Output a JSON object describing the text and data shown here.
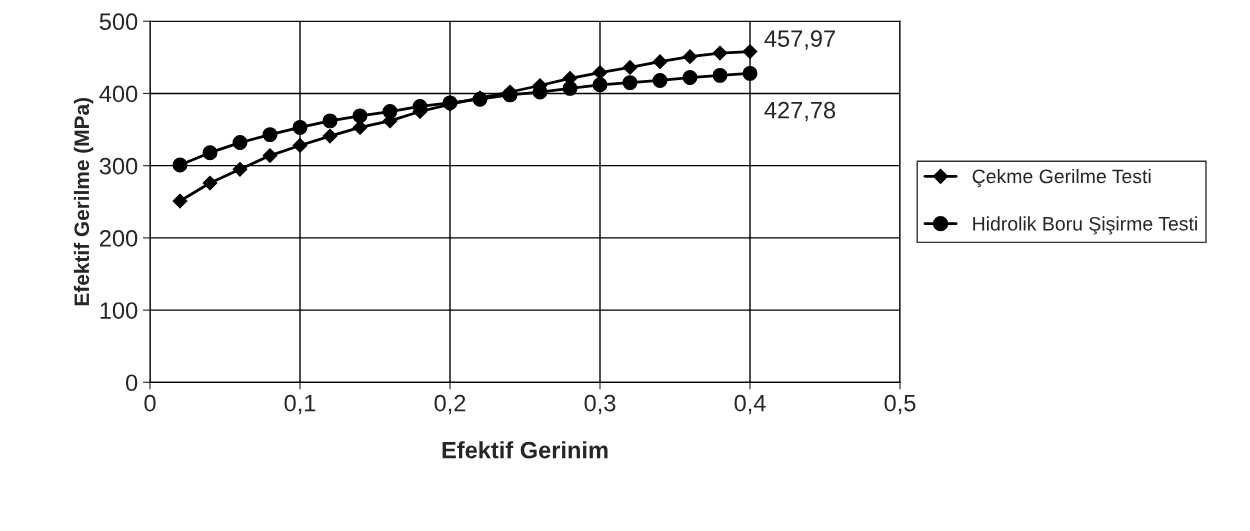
{
  "chart_data": {
    "type": "line",
    "xlabel": "Efektif Gerinim",
    "ylabel": "Efektif Gerilme (MPa)",
    "x": [
      0.02,
      0.04,
      0.06,
      0.08,
      0.1,
      0.12,
      0.14,
      0.16,
      0.18,
      0.2,
      0.22,
      0.24,
      0.26,
      0.28,
      0.3,
      0.32,
      0.34,
      0.36,
      0.38,
      0.4
    ],
    "series": [
      {
        "name": "Çekme Gerilme Testi",
        "color": "#000000",
        "marker": "diamond",
        "values": [
          251,
          276,
          295,
          314,
          328,
          341,
          353,
          362,
          375,
          385,
          394,
          402,
          411,
          421,
          429,
          436,
          444,
          451,
          456,
          457.97
        ]
      },
      {
        "name": "Hidrolik Boru Şişirme Testi",
        "color": "#000000",
        "marker": "circle",
        "values": [
          301,
          318,
          332,
          343,
          353,
          362,
          369,
          375,
          382,
          387,
          392,
          398,
          402,
          407,
          412,
          415,
          418,
          422,
          425,
          427.78
        ]
      }
    ],
    "annotations": [
      {
        "text": "457,97",
        "x": 0.4,
        "y": 457.97
      },
      {
        "text": "427,78",
        "x": 0.4,
        "y": 427.78
      }
    ],
    "xlim": [
      0,
      0.5
    ],
    "ylim": [
      0,
      500
    ],
    "xticks": [
      0,
      {
        "value": 0.1,
        "label": "0,1"
      },
      {
        "value": 0.2,
        "label": "0,2"
      },
      {
        "value": 0.3,
        "label": "0,3"
      },
      {
        "value": 0.4,
        "label": "0,4"
      },
      {
        "value": 0.5,
        "label": "0,5"
      }
    ],
    "yticks": [
      0,
      100,
      200,
      300,
      400,
      500
    ],
    "grid": true,
    "legend": "right",
    "line_style": "solid"
  }
}
